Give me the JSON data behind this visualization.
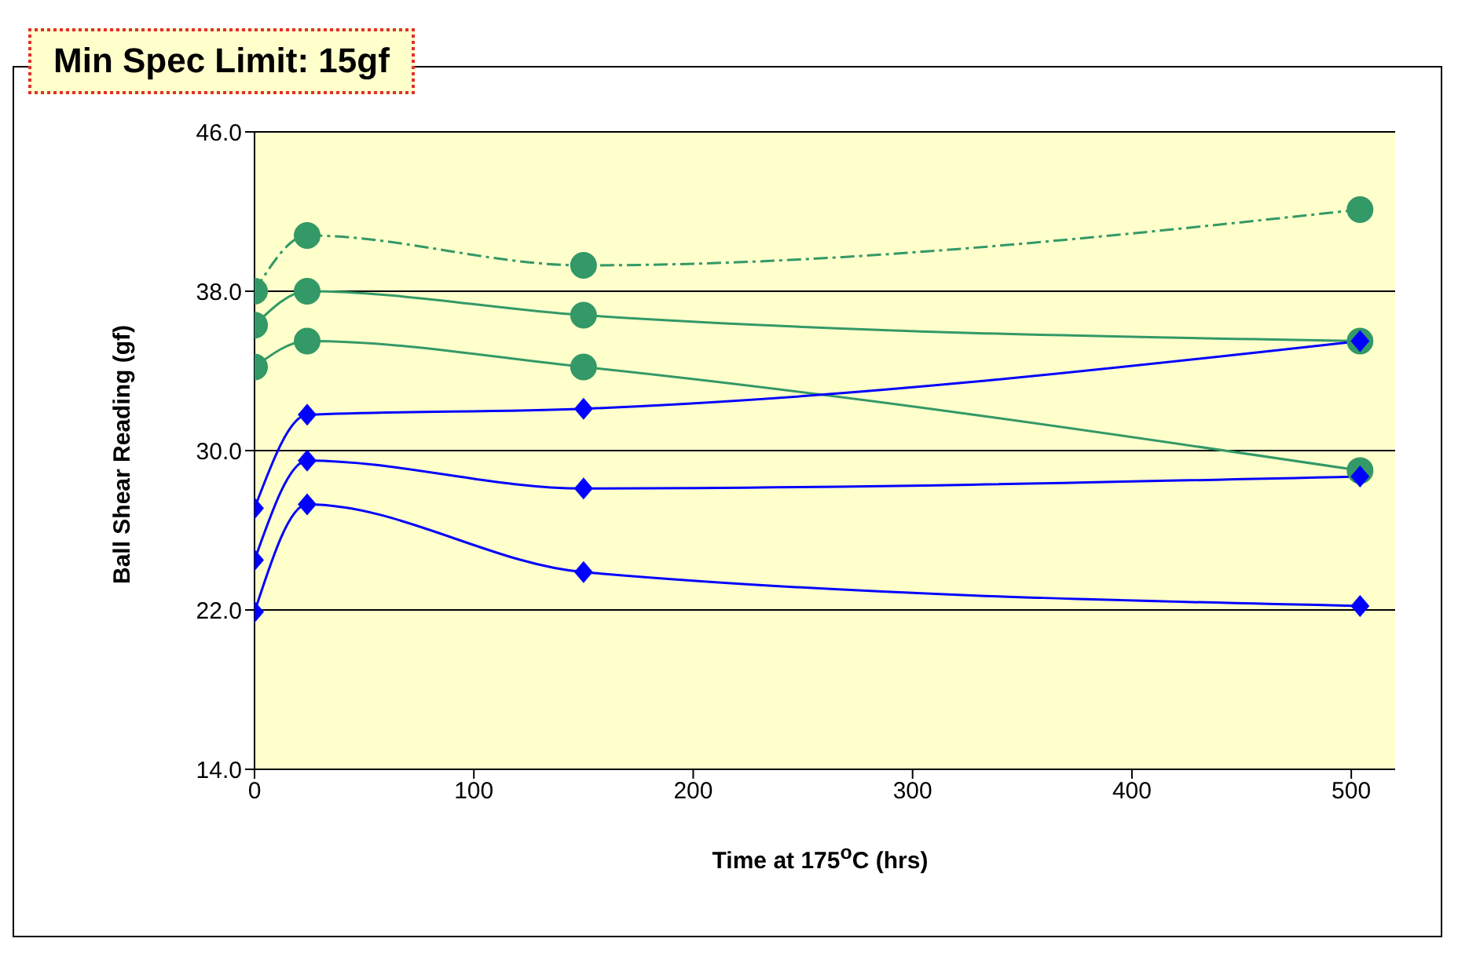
{
  "chart_data": {
    "type": "line",
    "annotations": [
      "Min Spec Limit: 15gf"
    ],
    "xlabel": "Time at 175$^{o}$C (hrs)",
    "ylabel": "Ball Shear Reading (gf)",
    "x": [
      0,
      24,
      150,
      504
    ],
    "series": [
      {
        "color": "#339966",
        "values": [
          38.0,
          40.8,
          39.3,
          42.1
        ],
        "marker": "circle",
        "line_style": "dashed"
      },
      {
        "color": "#339966",
        "values": [
          36.3,
          38.0,
          36.8,
          35.5
        ],
        "marker": "circle",
        "line_style": "solid"
      },
      {
        "color": "#339966",
        "values": [
          34.2,
          35.5,
          34.2,
          29.0
        ],
        "marker": "circle",
        "line_style": "solid"
      },
      {
        "color": "#0000ff",
        "values": [
          27.1,
          31.8,
          32.1,
          35.5
        ],
        "marker": "diamond",
        "line_style": "solid"
      },
      {
        "color": "#0000ff",
        "values": [
          24.5,
          29.5,
          28.1,
          28.7
        ],
        "marker": "diamond",
        "line_style": "solid"
      },
      {
        "color": "#0000ff",
        "values": [
          21.9,
          27.3,
          23.9,
          22.2
        ],
        "marker": "diamond",
        "line_style": "solid"
      }
    ],
    "xlim": [
      0,
      520
    ],
    "xticks": [
      0,
      100,
      200,
      300,
      400,
      500
    ],
    "ylim": [
      14,
      46
    ],
    "yticks": [
      {
        "value": 14,
        "label": "14.0"
      },
      {
        "value": 22,
        "label": "22.0"
      },
      {
        "value": 30,
        "label": "30.0"
      },
      {
        "value": 38,
        "label": "38.0"
      },
      {
        "value": 46,
        "label": "46.0"
      }
    ],
    "grid": "y"
  }
}
